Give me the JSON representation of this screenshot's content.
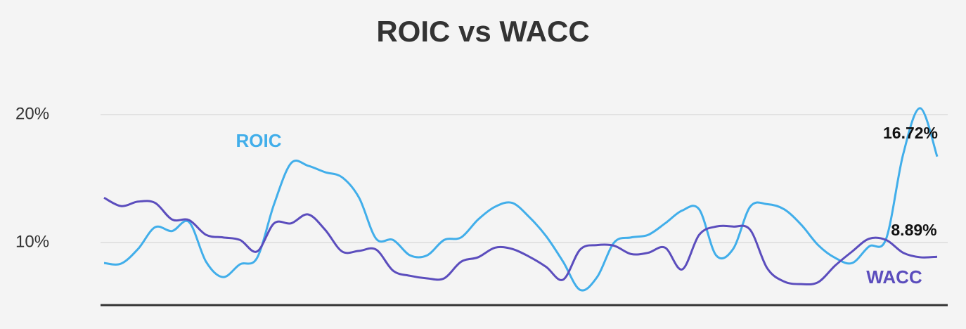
{
  "chart_data": {
    "type": "line",
    "title": "ROIC vs WACC",
    "ylim": [
      5.1,
      21
    ],
    "yticks": [
      {
        "value": 10,
        "label": "10%"
      },
      {
        "value": 20,
        "label": "20%"
      }
    ],
    "grid": true,
    "series": [
      {
        "name": "ROIC",
        "color": "#41aeea",
        "values": [
          8.4,
          8.35,
          9.5,
          11.2,
          10.9,
          11.6,
          8.5,
          7.3,
          8.3,
          8.8,
          13.0,
          16.2,
          16.0,
          15.5,
          15.1,
          13.5,
          10.3,
          10.2,
          9.0,
          9.0,
          10.2,
          10.4,
          11.8,
          12.8,
          13.1,
          12.0,
          10.5,
          8.5,
          6.3,
          7.3,
          10.0,
          10.4,
          10.6,
          11.5,
          12.5,
          12.6,
          9.0,
          9.5,
          12.8,
          13.0,
          12.6,
          11.4,
          9.8,
          8.8,
          8.4,
          9.7,
          10.3,
          16.9,
          20.5,
          16.72
        ],
        "value_labels": [
          null,
          null,
          null,
          null,
          null,
          null,
          null,
          null,
          null,
          null,
          null,
          null,
          null,
          null,
          null,
          null,
          null,
          null,
          null,
          null,
          null,
          null,
          null,
          null,
          null,
          null,
          null,
          null,
          null,
          null,
          null,
          null,
          null,
          null,
          null,
          null,
          null,
          null,
          null,
          null,
          null,
          null,
          null,
          null,
          null,
          null,
          null,
          null,
          null,
          "16.72%"
        ]
      },
      {
        "name": "WACC",
        "color": "#5b4dbd",
        "values": [
          13.5,
          12.85,
          13.2,
          13.1,
          11.8,
          11.75,
          10.6,
          10.4,
          10.2,
          9.3,
          11.5,
          11.5,
          12.2,
          11.0,
          9.3,
          9.35,
          9.45,
          7.8,
          7.4,
          7.2,
          7.2,
          8.5,
          8.85,
          9.6,
          9.5,
          8.9,
          8.1,
          7.1,
          9.45,
          9.8,
          9.75,
          9.1,
          9.2,
          9.6,
          7.9,
          10.6,
          11.25,
          11.25,
          11.0,
          8.0,
          6.95,
          6.75,
          6.9,
          8.2,
          9.3,
          10.3,
          10.2,
          9.2,
          8.85,
          8.89
        ],
        "value_labels": [
          null,
          null,
          null,
          null,
          null,
          null,
          null,
          null,
          null,
          null,
          null,
          null,
          null,
          null,
          null,
          null,
          null,
          null,
          null,
          null,
          null,
          null,
          null,
          null,
          null,
          null,
          null,
          null,
          null,
          null,
          null,
          null,
          null,
          null,
          null,
          null,
          null,
          null,
          null,
          null,
          null,
          null,
          null,
          null,
          null,
          null,
          null,
          null,
          null,
          "8.89%"
        ]
      }
    ]
  }
}
